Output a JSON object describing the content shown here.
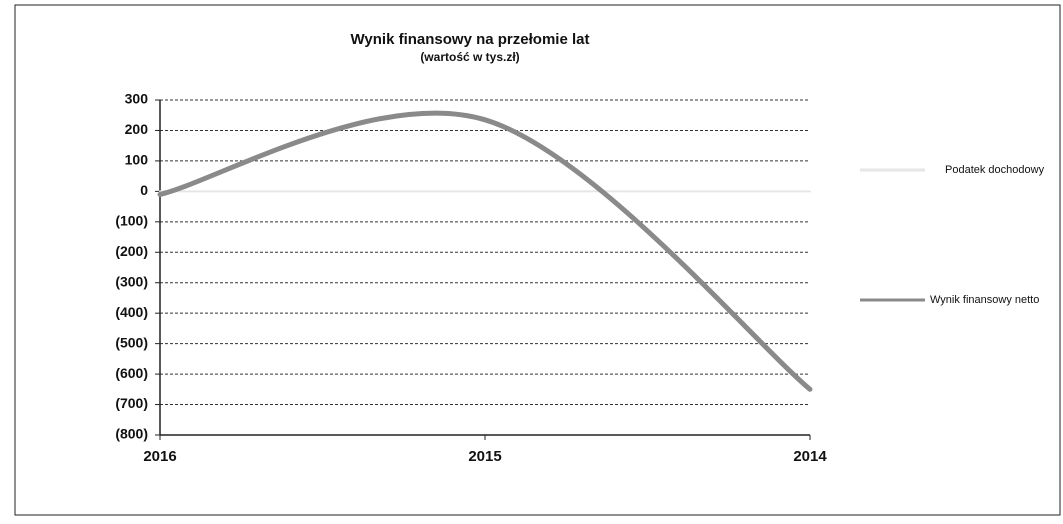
{
  "chart_data": {
    "type": "line",
    "title": "Wynik finansowy na przełomie lat",
    "subtitle": "(wartość w tys.zł)",
    "categories": [
      "2016",
      "2015",
      "2014"
    ],
    "series": [
      {
        "name": "Podatek dochodowy",
        "color": "#e6e6e6",
        "values": [
          0,
          0,
          0
        ]
      },
      {
        "name": "Wynik finansowy netto",
        "color": "#8a8a8a",
        "values": [
          -10,
          235,
          -650
        ]
      }
    ],
    "ylim": [
      -800,
      300
    ],
    "yticks": [
      {
        "value": -800,
        "label": "(800)"
      },
      {
        "value": -700,
        "label": "(700)"
      },
      {
        "value": -600,
        "label": "(600)"
      },
      {
        "value": -500,
        "label": "(500)"
      },
      {
        "value": -400,
        "label": "(400)"
      },
      {
        "value": -300,
        "label": "(300)"
      },
      {
        "value": -200,
        "label": "(200)"
      },
      {
        "value": -100,
        "label": "(100)"
      },
      0,
      100,
      200,
      300
    ],
    "grid": true,
    "smooth": true,
    "legend": "right"
  }
}
